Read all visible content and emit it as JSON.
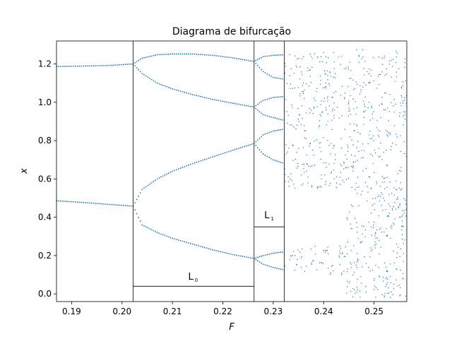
{
  "chart_data": {
    "type": "scatter",
    "title": "Diagrama de bifurcação",
    "xlabel": "F",
    "ylabel": "x",
    "xlim": [
      0.187,
      0.2565
    ],
    "ylim": [
      -0.04,
      1.32
    ],
    "grid": false,
    "x_ticks": [
      0.19,
      0.2,
      0.21,
      0.22,
      0.23,
      0.24,
      0.25
    ],
    "x_tick_labels": [
      "0.19",
      "0.20",
      "0.21",
      "0.22",
      "0.23",
      "0.24",
      "0.25"
    ],
    "y_ticks": [
      0.0,
      0.2,
      0.4,
      0.6,
      0.8,
      1.0,
      1.2
    ],
    "y_tick_labels": [
      "0.0",
      "0.2",
      "0.4",
      "0.6",
      "0.8",
      "1.0",
      "1.2"
    ],
    "marker_color": "#1f77b4",
    "region_dividers_F": [
      0.2022,
      0.2262,
      0.2322
    ],
    "regions": [
      {
        "label": "L",
        "subscript": "0",
        "F_range": [
          0.2022,
          0.2262
        ],
        "label_x": 0.2141,
        "label_y": 0.075,
        "baseline_y": 0.04
      },
      {
        "label": "L",
        "subscript": "1",
        "F_range": [
          0.2262,
          0.2322
        ],
        "label_x": 0.2292,
        "label_y": 0.395,
        "baseline_y": 0.35
      }
    ],
    "branches": [
      {
        "name": "",
        "F": [
          0.187,
          0.19,
          0.194,
          0.198,
          0.2022
        ],
        "x": [
          1.187,
          1.188,
          1.19,
          1.193,
          1.2
        ]
      },
      {
        "name": "",
        "F": [
          0.187,
          0.19,
          0.194,
          0.198,
          0.2022
        ],
        "x": [
          0.486,
          0.481,
          0.474,
          0.466,
          0.458
        ]
      },
      {
        "name": "",
        "F": [
          0.2022,
          0.204,
          0.207,
          0.21,
          0.214,
          0.218,
          0.222,
          0.2262
        ],
        "x": [
          1.2,
          1.23,
          1.248,
          1.252,
          1.252,
          1.245,
          1.232,
          1.213
        ]
      },
      {
        "name": "",
        "F": [
          0.2022,
          0.204,
          0.207,
          0.21,
          0.214,
          0.218,
          0.222,
          0.2262
        ],
        "x": [
          1.2,
          1.15,
          1.1,
          1.07,
          1.04,
          1.015,
          0.995,
          0.975
        ]
      },
      {
        "name": "",
        "F": [
          0.2022,
          0.204,
          0.207,
          0.21,
          0.214,
          0.218,
          0.222,
          0.2262
        ],
        "x": [
          0.458,
          0.545,
          0.6,
          0.64,
          0.68,
          0.715,
          0.75,
          0.785
        ]
      },
      {
        "name": "",
        "F": [
          0.2022,
          0.204,
          0.207,
          0.21,
          0.214,
          0.218,
          0.222,
          0.2262
        ],
        "x": [
          0.458,
          0.36,
          0.32,
          0.29,
          0.26,
          0.23,
          0.205,
          0.185
        ]
      },
      {
        "name": "",
        "F": [
          0.2262,
          0.228,
          0.23,
          0.2322
        ],
        "x": [
          1.213,
          1.238,
          1.245,
          1.248
        ]
      },
      {
        "name": "",
        "F": [
          0.2262,
          0.228,
          0.23,
          0.2322
        ],
        "x": [
          1.213,
          1.16,
          1.13,
          1.12
        ]
      },
      {
        "name": "",
        "F": [
          0.2262,
          0.228,
          0.23,
          0.2322
        ],
        "x": [
          0.975,
          1.01,
          1.025,
          1.03
        ]
      },
      {
        "name": "",
        "F": [
          0.2262,
          0.228,
          0.23,
          0.2322
        ],
        "x": [
          0.975,
          0.935,
          0.92,
          0.905
        ]
      },
      {
        "name": "",
        "F": [
          0.2262,
          0.228,
          0.23,
          0.2322
        ],
        "x": [
          0.785,
          0.83,
          0.85,
          0.86
        ]
      },
      {
        "name": "",
        "F": [
          0.2262,
          0.228,
          0.23,
          0.2322
        ],
        "x": [
          0.785,
          0.73,
          0.7,
          0.68
        ]
      },
      {
        "name": "",
        "F": [
          0.2262,
          0.228,
          0.23,
          0.2322
        ],
        "x": [
          0.185,
          0.2,
          0.212,
          0.22
        ]
      },
      {
        "name": "",
        "F": [
          0.2262,
          0.228,
          0.23,
          0.2322
        ],
        "x": [
          0.185,
          0.155,
          0.138,
          0.125
        ]
      }
    ],
    "chaotic_bands": [
      {
        "F_range": [
          0.2322,
          0.2445
        ],
        "x_range": [
          1.1,
          1.26
        ]
      },
      {
        "F_range": [
          0.2322,
          0.2445
        ],
        "x_range": [
          0.85,
          1.1
        ]
      },
      {
        "F_range": [
          0.2322,
          0.2445
        ],
        "x_range": [
          0.55,
          0.82
        ]
      },
      {
        "F_range": [
          0.2322,
          0.2445
        ],
        "x_range": [
          0.1,
          0.25
        ]
      },
      {
        "F_range": [
          0.2445,
          0.2565
        ],
        "x_range": [
          -0.02,
          1.28
        ]
      }
    ]
  }
}
